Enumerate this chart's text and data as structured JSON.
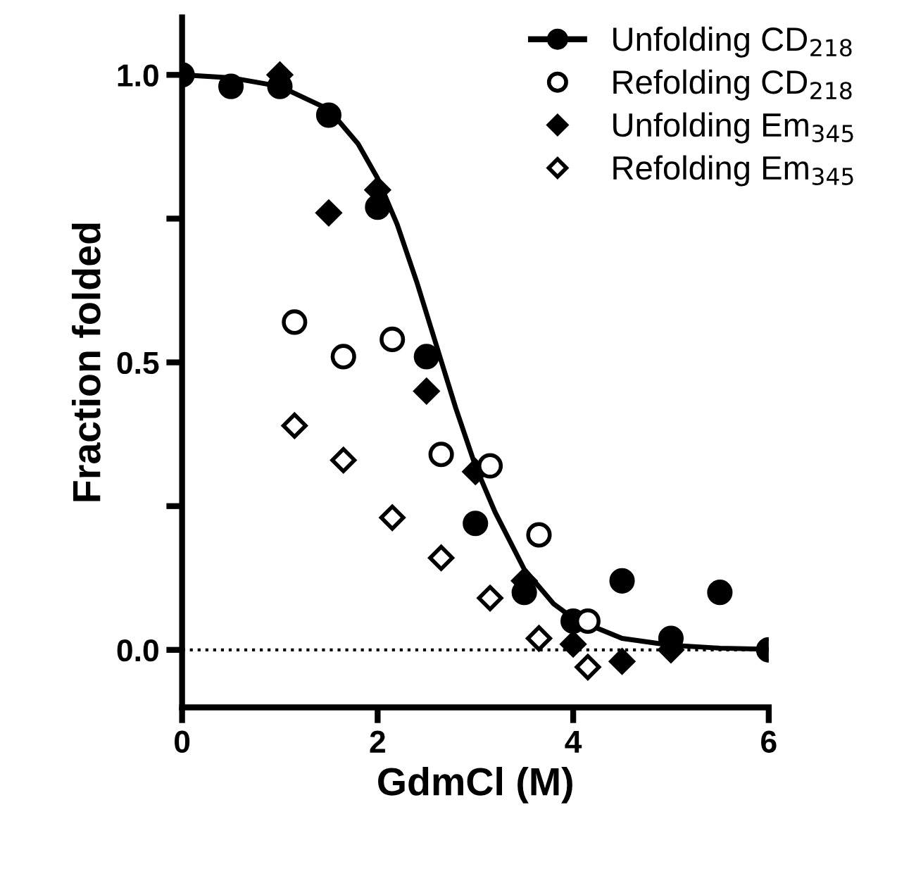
{
  "chart_data": {
    "type": "scatter",
    "xlabel": "GdmCl (M)",
    "ylabel": "Fraction folded",
    "xlim": [
      0,
      6
    ],
    "ylim": [
      -0.1,
      1.1
    ],
    "xticks": [
      0,
      2,
      4,
      6
    ],
    "yticks": [
      {
        "value": 0,
        "label": "0.0"
      },
      {
        "value": 0.25,
        "label": null
      },
      0.5,
      {
        "value": 0.75,
        "label": null
      },
      {
        "value": 1,
        "label": "1.0"
      }
    ],
    "grid": false,
    "legend": "top right",
    "ref_lines": [
      {
        "axis": "y",
        "value": 0,
        "line_style": "dotted",
        "color": "#000000"
      }
    ],
    "series": [
      {
        "name": "Unfolding CD$_{218}$",
        "color": "#000000",
        "marker": "circle",
        "x": [
          0,
          0.5,
          1,
          1.5,
          2,
          2.5,
          3,
          3.5,
          4,
          4.5,
          5,
          5.5,
          6
        ],
        "values": [
          1.0,
          0.98,
          0.98,
          0.93,
          0.77,
          0.51,
          0.22,
          0.1,
          0.05,
          0.12,
          0.02,
          0.1,
          0
        ]
      },
      {
        "type": "line",
        "color": "#000000",
        "marker": "none",
        "line_style": "solid",
        "x": [
          0,
          0.5,
          1,
          1.5,
          1.8,
          2,
          2.2,
          2.4,
          2.6,
          2.8,
          3,
          3.2,
          3.5,
          3.8,
          4,
          4.5,
          5,
          5.5,
          6
        ],
        "values": [
          1.0,
          0.995,
          0.98,
          0.94,
          0.88,
          0.82,
          0.74,
          0.64,
          0.53,
          0.42,
          0.32,
          0.24,
          0.14,
          0.08,
          0.055,
          0.02,
          0.008,
          0.003,
          0.001
        ]
      },
      {
        "name": "Refolding CD$_{218}$",
        "color": "#ffffff",
        "marker": "circle",
        "x": [
          1.15,
          1.65,
          2.15,
          2.65,
          3.15,
          3.65,
          4.15
        ],
        "values": [
          0.57,
          0.51,
          0.54,
          0.34,
          0.32,
          0.2,
          0.05
        ]
      },
      {
        "name": "Unfolding Em$_{345}$",
        "color": "#000000",
        "marker": "diamond",
        "x": [
          1,
          1.5,
          2,
          2.5,
          3,
          3.5,
          4,
          4.5,
          5
        ],
        "values": [
          1.0,
          0.76,
          0.8,
          0.45,
          0.31,
          0.12,
          0.01,
          -0.02,
          0
        ]
      },
      {
        "name": "Refolding Em$_{345}$",
        "color": "#ffffff",
        "marker": "diamond",
        "x": [
          1.15,
          1.65,
          2.15,
          2.65,
          3.15,
          3.65,
          4.15
        ],
        "values": [
          0.39,
          0.33,
          0.23,
          0.16,
          0.09,
          0.02,
          -0.03
        ]
      }
    ]
  }
}
